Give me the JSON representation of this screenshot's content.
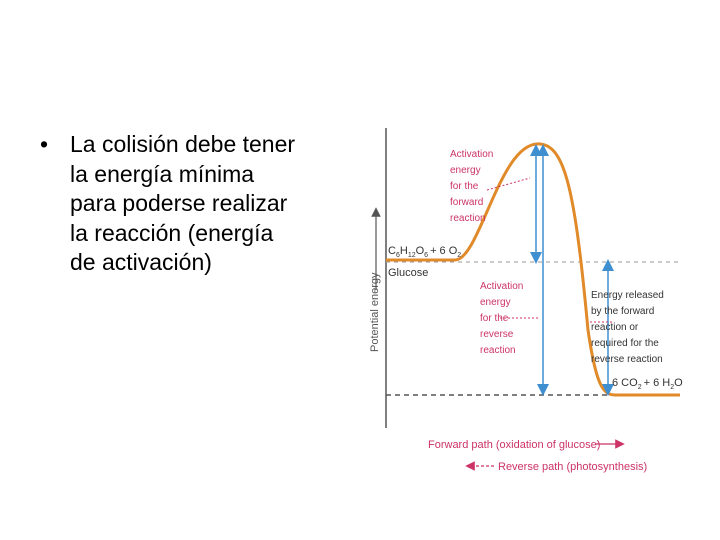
{
  "slide": {
    "bullet_symbol": "•",
    "bullet_lines": [
      "La colisión debe tener",
      "la energía mínima",
      "para poderse realizar",
      "la reacción (energía",
      "de activación)"
    ]
  },
  "diagram": {
    "y_axis_label": "Potential energy",
    "reactant_formula": {
      "c": "C",
      "c_sub": "6",
      "h": "H",
      "h_sub": "12",
      "o": "O",
      "o_sub": "6",
      "plus": "+ 6 O",
      "o2_sub": "2"
    },
    "reactant_name": "Glucose",
    "product_formula": {
      "prefix": "6 CO",
      "co2_sub": "2",
      "mid": "+ 6 H",
      "h2o_sub": "2",
      "suffix": "O"
    },
    "forward_activation_label": [
      "Activation",
      "energy",
      "for the",
      "forward",
      "reaction"
    ],
    "reverse_activation_label": [
      "Activation",
      "energy",
      "for the",
      "reverse",
      "reaction"
    ],
    "energy_released_label": [
      "Energy released",
      "by the forward",
      "reaction or",
      "required for the",
      "reverse reaction"
    ],
    "forward_path_label": "Forward path (oxidation of glucose)",
    "reverse_path_label": "Reverse path (photosynthesis)",
    "colors": {
      "curve": "#e08a2a",
      "arrows": "#3f8fd0",
      "labels": "#cc3366",
      "axis": "#555555",
      "dashed": "#9a9a9a"
    }
  }
}
